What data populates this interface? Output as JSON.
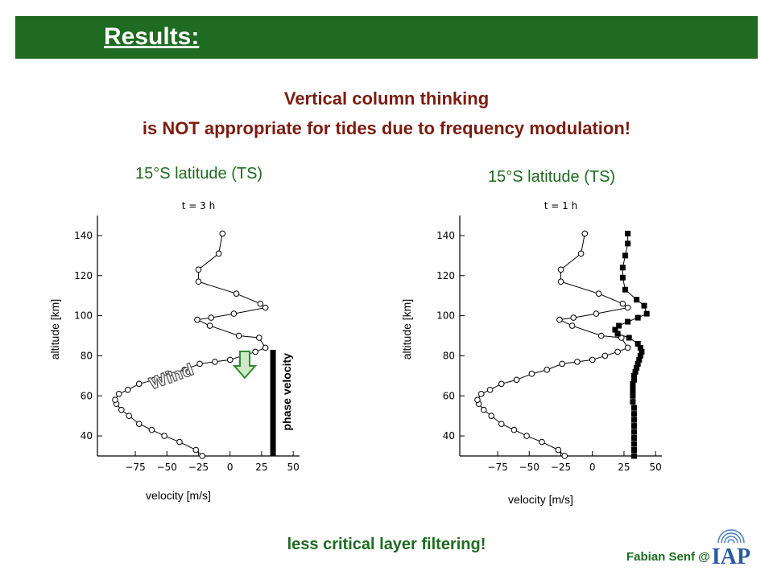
{
  "header": {
    "title": "Results:"
  },
  "headline": {
    "line1": "Vertical column thinking",
    "line2": "is NOT appropriate for tides due to frequency modulation!"
  },
  "subtitles": {
    "left": "15°S latitude (TS)",
    "right": "15°S latitude (TS)"
  },
  "footer": {
    "note": "less critical layer filtering!",
    "credit": "Fabian Senf @",
    "logo_text": "IAP"
  },
  "colors": {
    "header_green": "#1e6b21",
    "headline_red": "#7a1c10",
    "arrow_fill": "#cfe8c8",
    "arrow_stroke": "#2e8b2e"
  },
  "chart_data": [
    {
      "type": "line",
      "title": "t = 3 h",
      "xlabel": "velocity [m/s]",
      "ylabel": "altitude [km]",
      "xlim": [
        -105,
        55
      ],
      "ylim": [
        30,
        150
      ],
      "xticks": [
        -75,
        -50,
        -25,
        0,
        25,
        50
      ],
      "xtick_labels": [
        "−75",
        "−50",
        "−25",
        "0",
        "25",
        "50"
      ],
      "yticks": [
        40,
        60,
        80,
        100,
        120,
        140
      ],
      "series": [
        {
          "marker": "open-circle",
          "x": [
            -22,
            -27,
            -40,
            -52,
            -62,
            -72,
            -80,
            -86,
            -90,
            -91,
            -88,
            -81,
            -72,
            -60,
            -48,
            -36,
            -24,
            -12,
            0,
            10,
            20,
            28,
            23,
            7,
            -16,
            -26,
            -15,
            3,
            28,
            24,
            5,
            -25,
            -25,
            -9,
            -6
          ],
          "y": [
            30,
            33,
            37,
            40,
            43,
            46,
            50,
            53,
            56,
            58,
            61,
            63,
            66,
            68,
            71,
            73,
            76,
            77,
            78,
            80,
            82,
            84,
            89,
            90,
            95,
            98,
            99,
            101,
            104,
            106,
            111,
            117,
            123,
            131,
            141
          ]
        },
        {
          "marker": "thick-line",
          "x": [
            34,
            34
          ],
          "y": [
            30,
            83
          ]
        }
      ],
      "annotations": [
        {
          "text": "Wind",
          "x": -45,
          "y": 67
        },
        {
          "text": "phase velocity",
          "x": 48,
          "y": 62
        }
      ]
    },
    {
      "type": "line",
      "title": "t = 1 h",
      "xlabel": "velocity [m/s]",
      "ylabel": "altitude [km]",
      "xlim": [
        -105,
        55
      ],
      "ylim": [
        30,
        150
      ],
      "xticks": [
        -75,
        -50,
        -25,
        0,
        25,
        50
      ],
      "xtick_labels": [
        "−75",
        "−50",
        "−25",
        "0",
        "25",
        "50"
      ],
      "yticks": [
        40,
        60,
        80,
        100,
        120,
        140
      ],
      "series": [
        {
          "marker": "open-circle",
          "x": [
            -22,
            -27,
            -40,
            -52,
            -62,
            -72,
            -80,
            -86,
            -90,
            -91,
            -88,
            -81,
            -72,
            -60,
            -48,
            -36,
            -24,
            -12,
            0,
            10,
            20,
            28,
            23,
            7,
            -16,
            -26,
            -15,
            3,
            28,
            24,
            5,
            -25,
            -25,
            -9,
            -6
          ],
          "y": [
            30,
            33,
            37,
            40,
            43,
            46,
            50,
            53,
            56,
            58,
            61,
            63,
            66,
            68,
            71,
            73,
            76,
            77,
            78,
            80,
            82,
            84,
            89,
            90,
            95,
            98,
            99,
            101,
            104,
            106,
            111,
            117,
            123,
            131,
            141
          ]
        },
        {
          "marker": "filled-square",
          "x": [
            33,
            33,
            33,
            33,
            33,
            33,
            33,
            33,
            33,
            32,
            32,
            32,
            32,
            32,
            33,
            33,
            34,
            35,
            36,
            37,
            38,
            39,
            38,
            36,
            29,
            20,
            18,
            21,
            28,
            36,
            43,
            41,
            35,
            26,
            24,
            24,
            26,
            28,
            28
          ],
          "y": [
            30,
            33,
            36,
            39,
            42,
            45,
            48,
            51,
            54,
            57,
            60,
            62,
            64,
            66,
            68,
            70,
            72,
            74,
            76,
            78,
            80,
            82,
            84,
            86,
            89,
            91,
            93,
            95,
            97,
            99,
            101,
            105,
            108,
            113,
            119,
            124,
            130,
            136,
            141
          ]
        }
      ]
    }
  ]
}
